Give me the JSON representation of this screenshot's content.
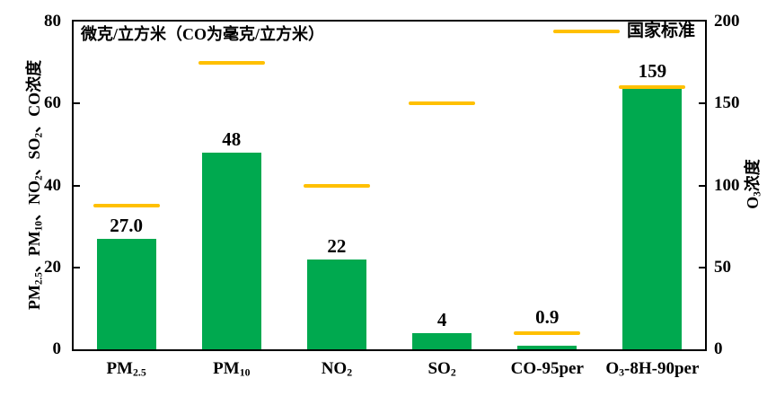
{
  "chart_data": {
    "type": "bar",
    "categories": [
      "PM_{2.5}",
      "PM_{10}",
      "NO_{2}",
      "SO_{2}",
      "CO-95per",
      "O_{3}-8H-90per"
    ],
    "axes": [
      "left",
      "left",
      "left",
      "left",
      "left",
      "right"
    ],
    "series": [
      {
        "name": "浓度",
        "type": "bar",
        "values": [
          27.0,
          48,
          22,
          4,
          0.9,
          159
        ],
        "value_labels": [
          "27.0",
          "48",
          "22",
          "4",
          "0.9",
          "159"
        ],
        "color": "#00A94F"
      },
      {
        "name": "国家标准",
        "type": "line-segments",
        "values": [
          35,
          70,
          40,
          60,
          4,
          160
        ],
        "color": "#FFC000"
      }
    ],
    "left_axis": {
      "label": "PM_{2.5}、PM_{10}、NO_{2}、SO_{2}、CO浓度",
      "min": 0,
      "max": 80,
      "ticks": [
        0,
        20,
        40,
        60,
        80
      ]
    },
    "right_axis": {
      "label": "O_{3}浓度",
      "min": 0,
      "max": 200,
      "ticks": [
        0,
        50,
        100,
        150,
        200
      ]
    },
    "annotation": "微克/立方米（CO为毫克/立方米）",
    "legend": {
      "label": "国家标准",
      "position": "top-right"
    },
    "grid": false,
    "text_color": "#000000",
    "background": "#FFFFFF"
  }
}
